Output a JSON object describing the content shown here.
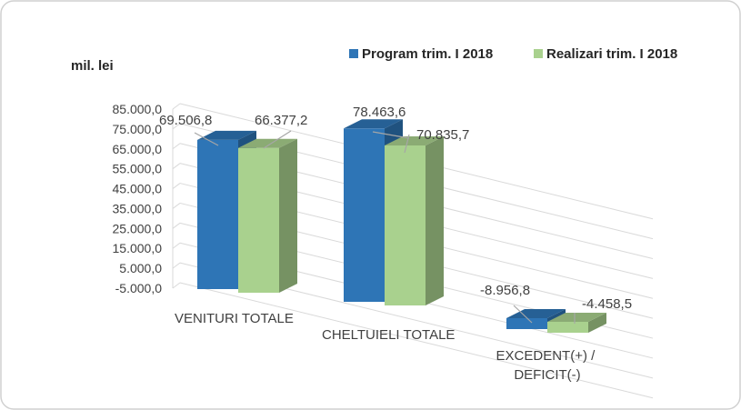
{
  "chart_data": {
    "type": "bar",
    "title": "",
    "unit_label": "mil. lei",
    "categories": [
      "VENITURI TOTALE",
      "CHELTUIELI TOTALE",
      "EXCEDENT(+) / DEFICIT(-)"
    ],
    "series": [
      {
        "name": "Program trim. I 2018",
        "values": [
          69506.8,
          78463.6,
          -8956.8
        ],
        "labels": [
          "69.506,8",
          "78.463,6",
          "-8.956,8"
        ],
        "color": "#2e75b6"
      },
      {
        "name": "Realizari trim. I 2018",
        "values": [
          66377.2,
          70835.7,
          -4458.5
        ],
        "labels": [
          "66.377,2",
          "70.835,7",
          "-4.458,5"
        ],
        "color": "#a9d18e"
      }
    ],
    "y_ticks": [
      "-5.000,0",
      "5.000,0",
      "15.000,0",
      "25.000,0",
      "35.000,0",
      "45.000,0",
      "55.000,0",
      "65.000,0",
      "75.000,0",
      "85.000,0"
    ],
    "ylim": [
      -5000,
      85000
    ],
    "legend_position": "top-right",
    "grid": true
  }
}
